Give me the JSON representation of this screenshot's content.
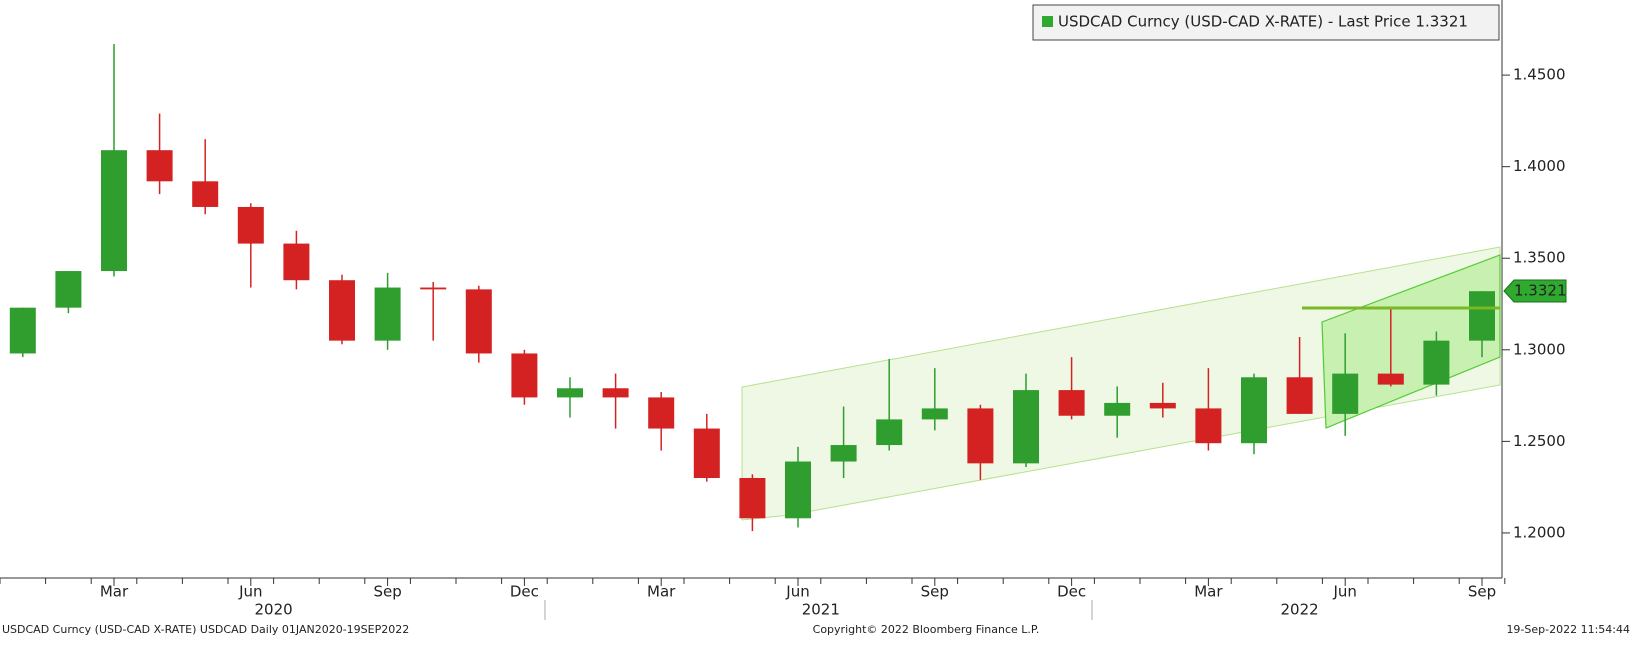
{
  "chart_data": {
    "type": "candlestick",
    "legend": "USDCAD Curncy (USD-CAD X-RATE) - Last Price 1.3321",
    "last_price": 1.3321,
    "x": [
      "2020-01",
      "2020-02",
      "2020-03",
      "2020-04",
      "2020-05",
      "2020-06",
      "2020-07",
      "2020-08",
      "2020-09",
      "2020-10",
      "2020-11",
      "2020-12",
      "2021-01",
      "2021-02",
      "2021-03",
      "2021-04",
      "2021-05",
      "2021-06",
      "2021-07",
      "2021-08",
      "2021-09",
      "2021-10",
      "2021-11",
      "2021-12",
      "2022-01",
      "2022-02",
      "2022-03",
      "2022-04",
      "2022-05",
      "2022-06",
      "2022-07",
      "2022-08",
      "2022-09"
    ],
    "series": [
      {
        "name": "USDCAD Curncy (USD-CAD X-RATE) - Last Price 1.3321",
        "up_color": "#2f9e2f",
        "down_color": "#d42222",
        "open": [
          1.298,
          1.323,
          1.343,
          1.409,
          1.392,
          1.378,
          1.358,
          1.338,
          1.305,
          1.334,
          1.333,
          1.298,
          1.274,
          1.279,
          1.274,
          1.257,
          1.23,
          1.208,
          1.239,
          1.248,
          1.262,
          1.268,
          1.238,
          1.278,
          1.264,
          1.271,
          1.268,
          1.249,
          1.285,
          1.265,
          1.287,
          1.281,
          1.305
        ],
        "high": [
          1.323,
          1.343,
          1.467,
          1.429,
          1.415,
          1.38,
          1.365,
          1.341,
          1.342,
          1.337,
          1.335,
          1.3,
          1.285,
          1.287,
          1.277,
          1.265,
          1.232,
          1.247,
          1.269,
          1.295,
          1.29,
          1.27,
          1.287,
          1.296,
          1.28,
          1.282,
          1.29,
          1.287,
          1.307,
          1.309,
          1.322,
          1.31,
          1.332
        ],
        "low": [
          1.296,
          1.32,
          1.34,
          1.385,
          1.374,
          1.334,
          1.333,
          1.303,
          1.3,
          1.305,
          1.293,
          1.27,
          1.263,
          1.257,
          1.245,
          1.228,
          1.201,
          1.203,
          1.23,
          1.245,
          1.256,
          1.229,
          1.236,
          1.262,
          1.252,
          1.263,
          1.245,
          1.243,
          1.265,
          1.253,
          1.28,
          1.275,
          1.296
        ],
        "close": [
          1.323,
          1.343,
          1.409,
          1.392,
          1.378,
          1.358,
          1.338,
          1.305,
          1.334,
          1.333,
          1.298,
          1.274,
          1.279,
          1.274,
          1.257,
          1.23,
          1.208,
          1.239,
          1.248,
          1.262,
          1.268,
          1.238,
          1.278,
          1.264,
          1.271,
          1.268,
          1.249,
          1.285,
          1.265,
          1.287,
          1.281,
          1.305,
          1.332
        ]
      }
    ],
    "ylim": [
      1.1754,
      1.491
    ],
    "yticks": [
      {
        "value": 1.2,
        "label": "1.2000"
      },
      {
        "value": 1.25,
        "label": "1.2500"
      },
      {
        "value": 1.3,
        "label": "1.3000"
      },
      {
        "value": 1.35,
        "label": "1.3500"
      },
      {
        "value": 1.4,
        "label": "1.4000"
      },
      {
        "value": 1.45,
        "label": "1.4500"
      }
    ],
    "xticks": [
      {
        "value": "2020-03",
        "label": "Mar"
      },
      {
        "value": "2020-06",
        "label": "Jun"
      },
      {
        "value": "2020-09",
        "label": "Sep"
      },
      {
        "value": "2020-12",
        "label": "Dec"
      },
      {
        "value": "2021-03",
        "label": "Mar"
      },
      {
        "value": "2021-06",
        "label": "Jun"
      },
      {
        "value": "2021-09",
        "label": "Sep"
      },
      {
        "value": "2021-12",
        "label": "Dec"
      },
      {
        "value": "2022-03",
        "label": "Mar"
      },
      {
        "value": "2022-06",
        "label": "Jun"
      },
      {
        "value": "2022-09",
        "label": "Sep"
      }
    ],
    "years": [
      "2020",
      "2021",
      "2022"
    ],
    "footer": {
      "left": "USDCAD Curncy (USD-CAD X-RATE) USDCAD  Daily 01JAN2020-19SEP2022",
      "center": "Copyright© 2022 Bloomberg Finance L.P.",
      "right": "19-Sep-2022 11:54:44"
    }
  }
}
